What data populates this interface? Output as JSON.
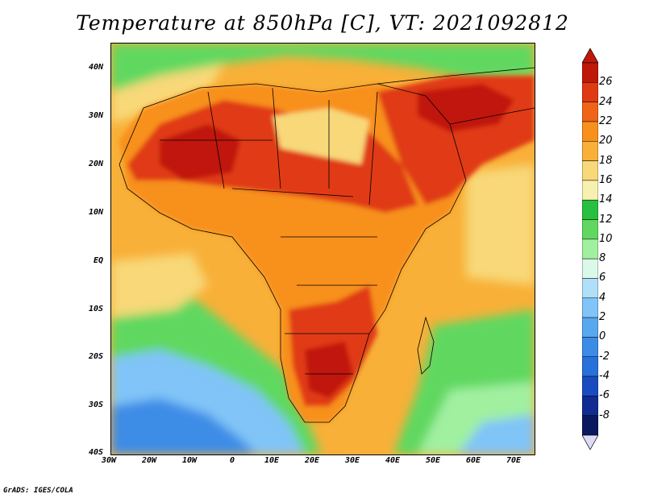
{
  "title": "Temperature at 850hPa [C], VT: 2021092812",
  "credit": "GrADS: IGES/COLA",
  "lat_ticks": [
    "40N",
    "30N",
    "20N",
    "10N",
    "EQ",
    "10S",
    "20S",
    "30S",
    "40S"
  ],
  "lon_ticks": [
    "30W",
    "20W",
    "10W",
    "0",
    "10E",
    "20E",
    "30E",
    "40E",
    "50E",
    "60E",
    "70E"
  ],
  "colorbar": {
    "labels": [
      "26",
      "24",
      "22",
      "20",
      "18",
      "16",
      "14",
      "12",
      "10",
      "8",
      "6",
      "4",
      "2",
      "0",
      "-2",
      "-4",
      "-6",
      "-8"
    ],
    "colors": [
      "#c01808",
      "#e03a12",
      "#f06418",
      "#f8901c",
      "#f8b038",
      "#f8d878",
      "#f8f0b0",
      "#28c040",
      "#60d860",
      "#a0f0a0",
      "#dcf8ea",
      "#b0e0f8",
      "#80c4f8",
      "#58a8f0",
      "#3c8ce6",
      "#2870da",
      "#1a4cc0",
      "#102c90",
      "#0a1860"
    ],
    "top_arrow_color": "#c01808",
    "bottom_arrow_color": "#dcdcf8"
  },
  "map_colors": {
    "ocean_warm": "#f8b038",
    "ocean_mid": "#f8d878",
    "ocean_cool": "#60d860",
    "ocean_cold": "#80c4f8",
    "land_hot": "#e03a12",
    "land_very_hot": "#c01808",
    "land_warm": "#f8901c",
    "land_mild": "#f8d878",
    "borders": "#000000"
  }
}
